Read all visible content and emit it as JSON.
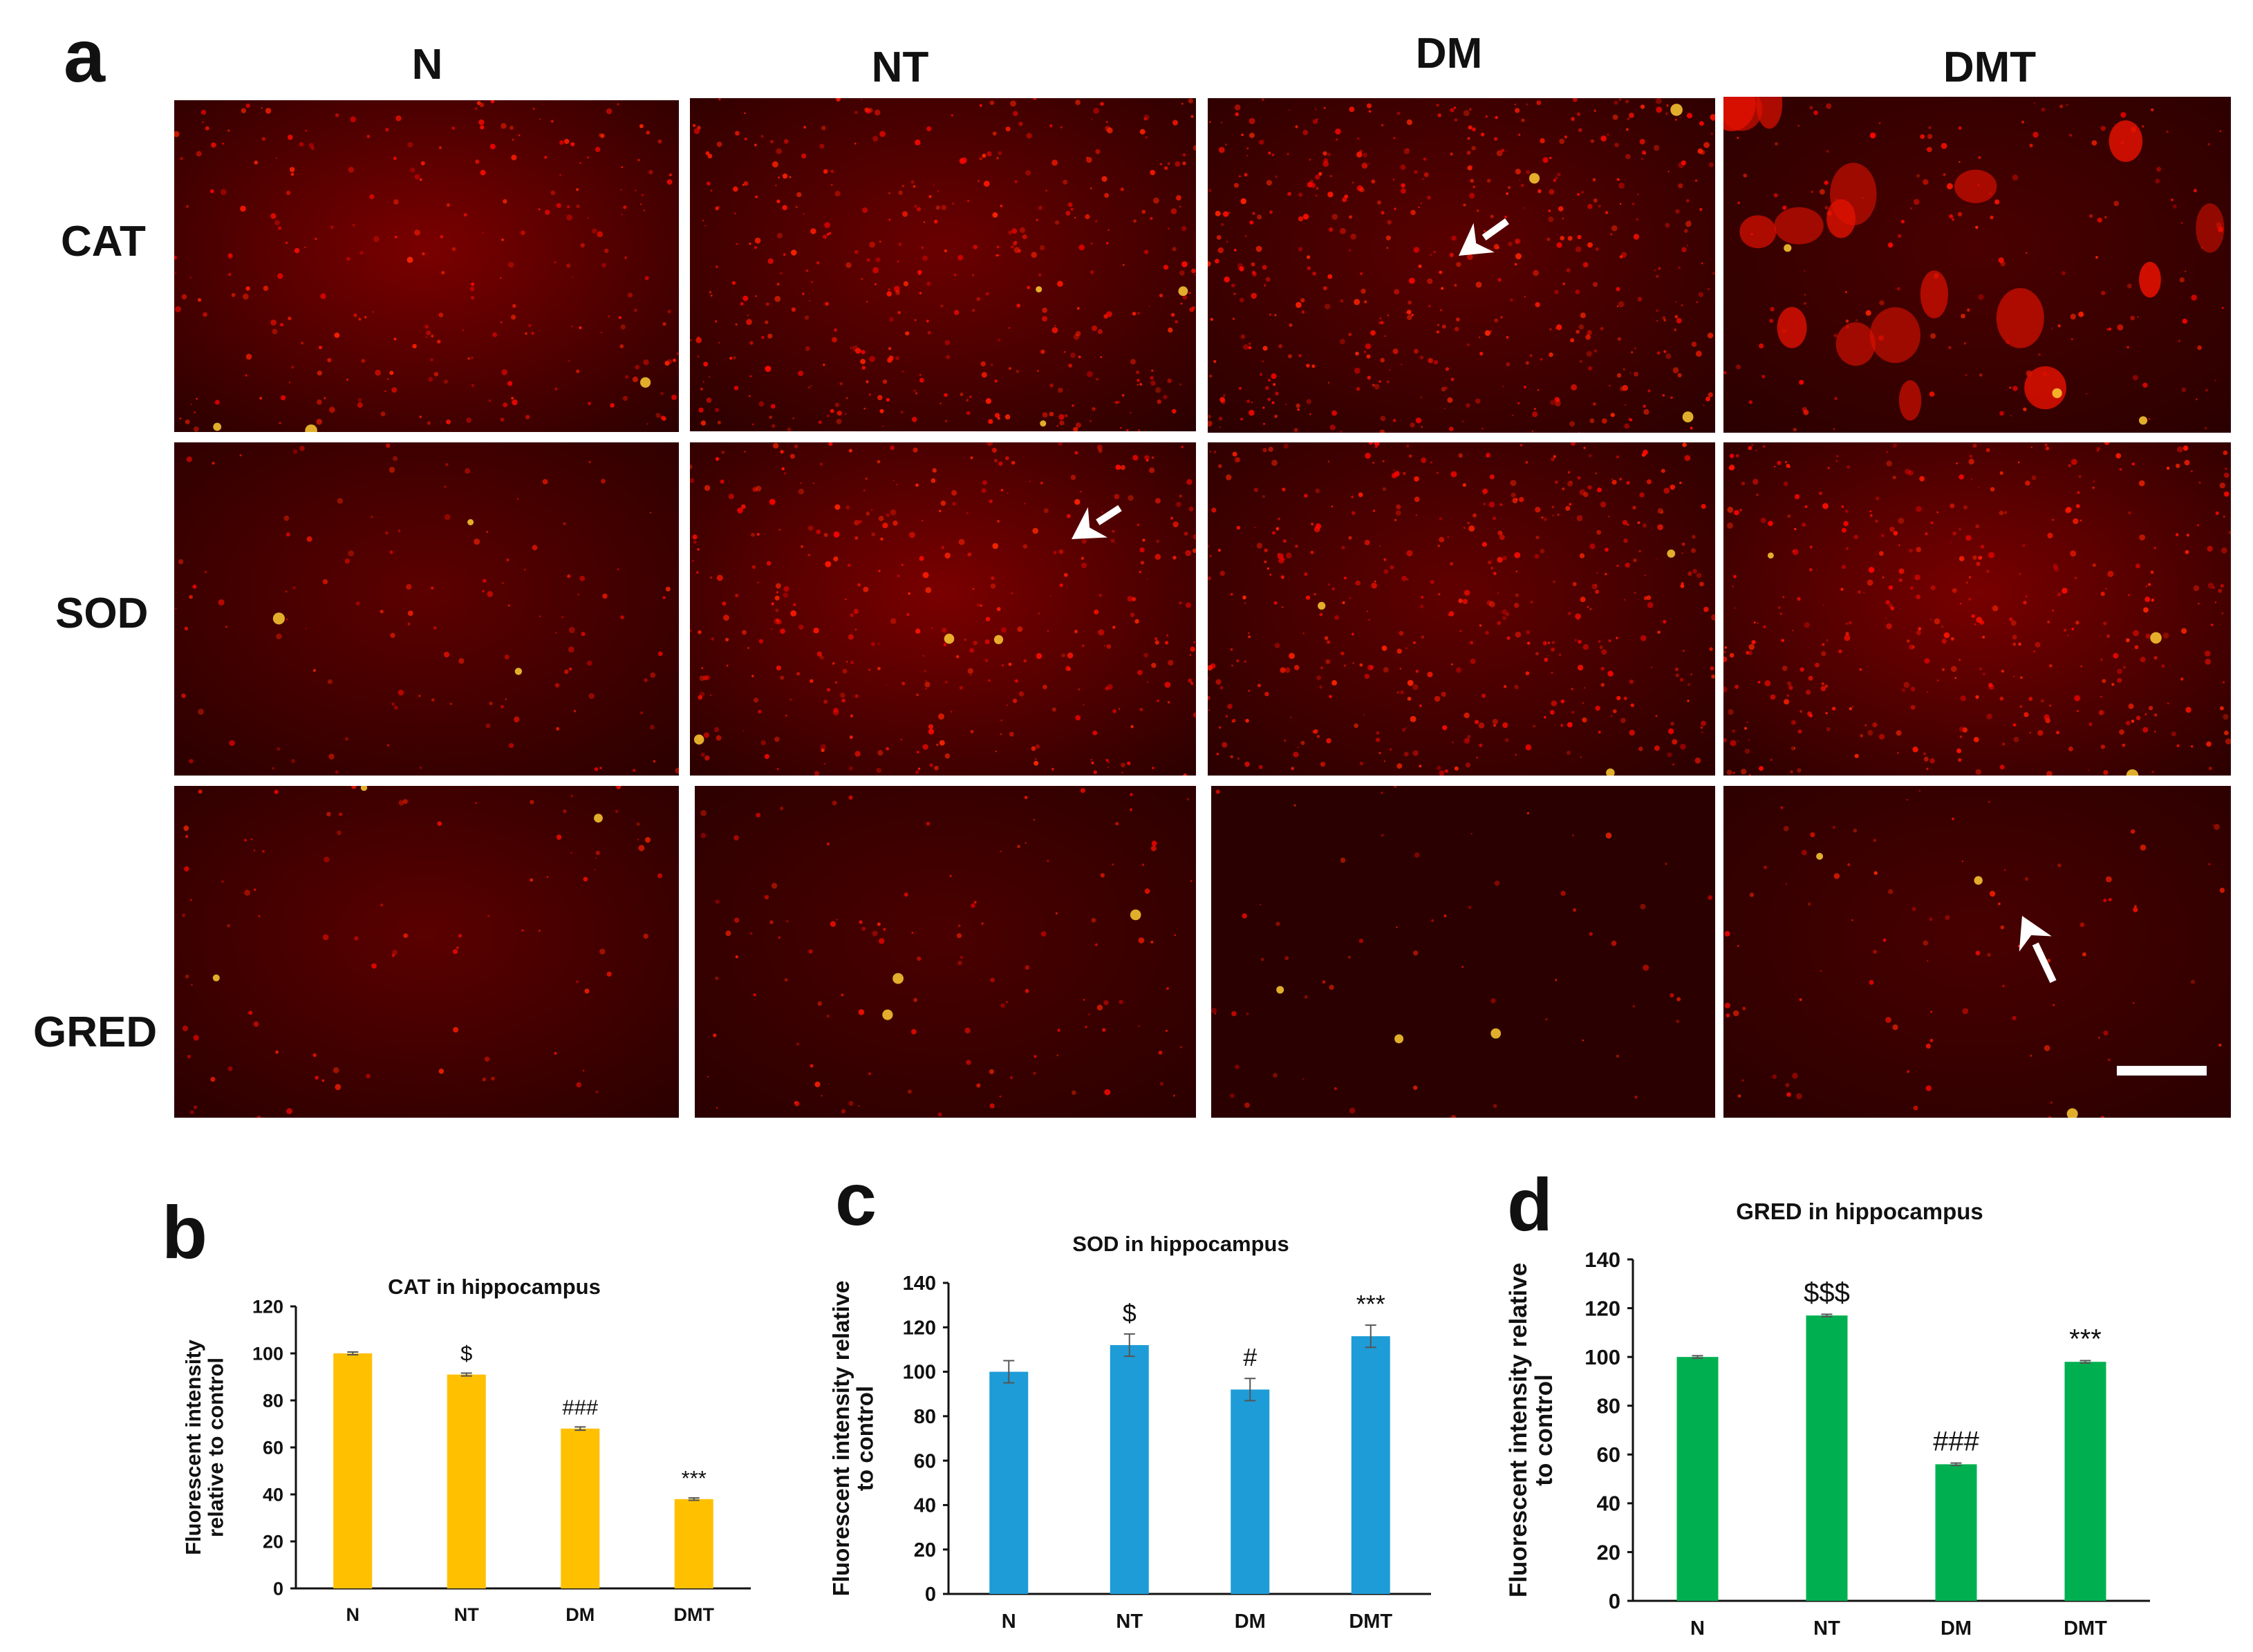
{
  "panel_a": {
    "letter": "a",
    "columns": [
      "N",
      "NT",
      "DM",
      "DMT"
    ],
    "rows": [
      "CAT",
      "SOD",
      "GRED"
    ]
  },
  "chart_data": [
    {
      "letter": "b",
      "type": "bar",
      "title": "CAT in hippocampus",
      "ylabel": [
        "Fluorescent intensity",
        "relative to control"
      ],
      "xlabel": "",
      "categories": [
        "N",
        "NT",
        "DM",
        "DMT"
      ],
      "values": [
        100,
        91,
        68,
        38
      ],
      "errors": [
        0.6,
        0.6,
        0.7,
        0.5
      ],
      "annotations": [
        "",
        "$",
        "###",
        "***"
      ],
      "ylim": [
        0,
        120
      ],
      "yticks": [
        0,
        20,
        40,
        60,
        80,
        100,
        120
      ],
      "color": "#FFC000",
      "grid": false
    },
    {
      "letter": "c",
      "type": "bar",
      "title": "SOD in hippocampus",
      "ylabel": [
        "Fluorescent intensity relative",
        "to control"
      ],
      "xlabel": "",
      "categories": [
        "N",
        "NT",
        "DM",
        "DMT"
      ],
      "values": [
        100,
        112,
        92,
        116
      ],
      "errors": [
        5,
        5,
        5,
        5
      ],
      "annotations": [
        "",
        "$",
        "#",
        "***"
      ],
      "ylim": [
        0,
        140
      ],
      "yticks": [
        0,
        20,
        40,
        60,
        80,
        100,
        120,
        140
      ],
      "color": "#1E9CD7",
      "grid": false
    },
    {
      "letter": "d",
      "type": "bar",
      "title": "GRED in hippocampus",
      "ylabel": [
        "Fluorescent intensity relative",
        "to control"
      ],
      "xlabel": "",
      "categories": [
        "N",
        "NT",
        "DM",
        "DMT"
      ],
      "values": [
        100,
        117,
        56,
        98
      ],
      "errors": [
        0.5,
        0.5,
        0.5,
        0.5
      ],
      "annotations": [
        "",
        "$$$",
        "###",
        "***"
      ],
      "ylim": [
        0,
        140
      ],
      "yticks": [
        0,
        20,
        40,
        60,
        80,
        100,
        120,
        140
      ],
      "color": "#00B050",
      "grid": false
    }
  ],
  "colors": {
    "tissue_background": "#8a0000",
    "tissue_signal": "#ff1a00",
    "arrow": "#ffffff",
    "scale_bar": "#ffffff"
  }
}
